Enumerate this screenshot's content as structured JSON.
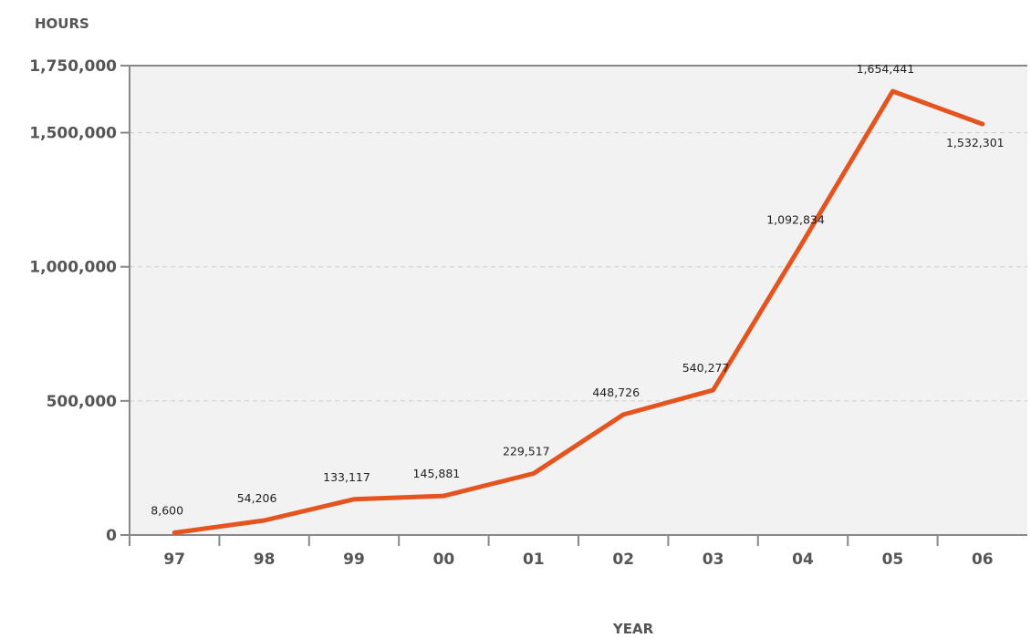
{
  "chart_data": {
    "type": "line",
    "ylabel": "HOURS",
    "xlabel": "YEAR",
    "categories": [
      "97",
      "98",
      "99",
      "00",
      "01",
      "02",
      "03",
      "04",
      "05",
      "06"
    ],
    "series": [
      {
        "values": [
          8600,
          54206,
          133117,
          145881,
          229517,
          448726,
          540277,
          1092834,
          1654441,
          1532301
        ],
        "data_labels": [
          "8,600",
          "54,206",
          "133,117",
          "145,881",
          "229,517",
          "448,726",
          "540,277",
          "1,092,834",
          "1,654,441",
          "1,532,301"
        ]
      }
    ],
    "ylim": [
      0,
      1750000
    ],
    "yticks": [
      0,
      500000,
      1000000,
      1500000,
      1750000
    ],
    "ytick_labels": [
      "0",
      "500,000",
      "1,000,000",
      "1,500,000",
      "1,750,000"
    ],
    "grid": true,
    "colors": {
      "line": "#e5531f",
      "plot_background": "#f2f2f2",
      "gridline": "#cccccc",
      "axis": "#888888",
      "text": "#555555"
    }
  }
}
